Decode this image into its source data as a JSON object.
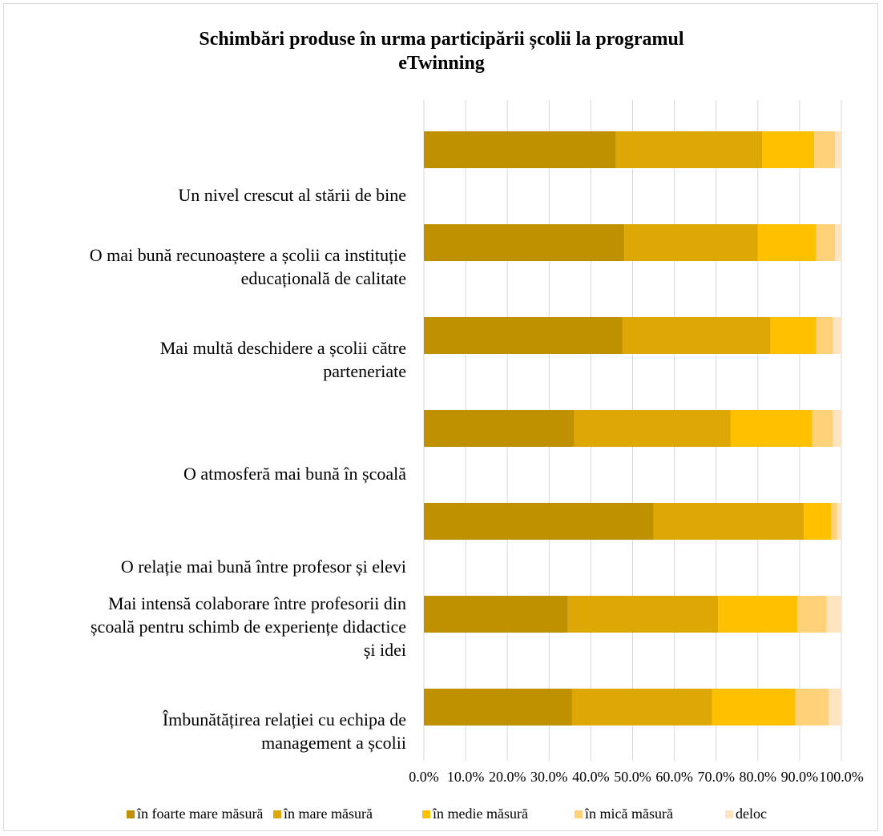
{
  "chart_data": {
    "type": "bar",
    "orientation": "horizontal",
    "stacked": true,
    "percent_stacked": true,
    "title": [
      "Schimbări produse în urma participării școlii la programul",
      "eTwinning"
    ],
    "categories": [
      [
        "Un nivel crescut al stării de bine"
      ],
      [
        "O mai bună recunoaștere a școlii ca instituție",
        "educațională de calitate"
      ],
      [
        "Mai multă deschidere a școlii către",
        "parteneriate"
      ],
      [
        "O atmosferă mai bună în școală"
      ],
      [
        "O relație mai bună între profesor și elevi"
      ],
      [
        "Mai intensă colaborare între profesorii din",
        "școală pentru schimb de experiențe didactice",
        "și idei"
      ],
      [
        "Îmbunătățirea relației cu echipa de",
        "management a școlii"
      ]
    ],
    "series": [
      {
        "name": "în foarte mare măsură",
        "color": "#BF9000",
        "values": [
          46.0,
          48.0,
          47.5,
          36.0,
          55.0,
          34.5,
          35.5
        ]
      },
      {
        "name": "în mare măsură",
        "color": "#DDA706",
        "values": [
          35.0,
          32.0,
          35.5,
          37.5,
          36.0,
          36.0,
          33.5
        ]
      },
      {
        "name": "în medie măsură",
        "color": "#FFC000",
        "values": [
          12.5,
          14.0,
          11.0,
          19.5,
          6.5,
          19.0,
          20.0
        ]
      },
      {
        "name": "în mică măsură",
        "color": "#FFD27A",
        "values": [
          5.0,
          4.5,
          4.0,
          5.0,
          1.5,
          7.0,
          8.0
        ]
      },
      {
        "name": "deloc",
        "color": "#FFE4C0",
        "values": [
          1.5,
          1.5,
          2.0,
          2.0,
          1.0,
          3.5,
          3.0
        ]
      }
    ],
    "x_ticks": [
      "0.0%",
      "10.0%",
      "20.0%",
      "30.0%",
      "40.0%",
      "50.0%",
      "60.0%",
      "70.0%",
      "80.0%",
      "90.0%",
      "100.0%"
    ],
    "xlim": [
      0,
      100
    ],
    "grid": true,
    "legend_position": "bottom",
    "label_position": "below-bar"
  }
}
